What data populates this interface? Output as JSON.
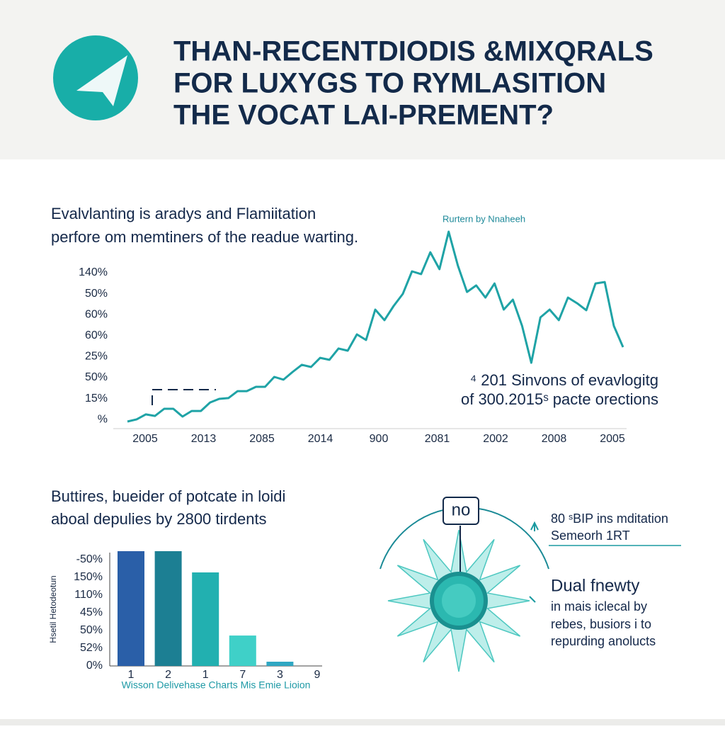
{
  "header": {
    "title": [
      "THAN-RECENTDIODIS &MIXQRALS",
      "FOR LUXYGS TO RYMLASITION",
      "THE VOCAT LAI-PREMENT?"
    ]
  },
  "line_chart": {
    "type": "line",
    "subtitle": [
      "Evalvlanting is aradys and Flamiitation",
      "perfore om memtiners of the readue warting."
    ],
    "legend": "Rurtern by Nnaheeh",
    "y_labels": [
      "140%",
      "50%",
      "60%",
      "60%",
      "25%",
      "50%",
      "15%",
      "%"
    ],
    "x_labels": [
      "2005",
      "2013",
      "2085",
      "2014",
      "900",
      "2081",
      "2002",
      "2008",
      "2005"
    ],
    "ylim": [
      0,
      100
    ],
    "color": "#1fa3a6",
    "values": [
      1.8,
      2.9,
      5.4,
      4.6,
      8.2,
      8.2,
      4.3,
      7.1,
      7.1,
      11.4,
      13.2,
      13.6,
      17.1,
      17.1,
      19.3,
      19.3,
      24.3,
      22.9,
      26.8,
      30.4,
      29.3,
      33.9,
      32.9,
      38.6,
      37.5,
      45.7,
      42.9,
      58.2,
      52.9,
      60,
      66.1,
      77.5,
      76.1,
      87.1,
      78.6,
      97.5,
      80.4,
      67.1,
      70.4,
      64.3,
      71.4,
      58.2,
      63.2,
      50,
      31.4,
      54.3,
      58.2,
      52.9,
      64.3,
      61.4,
      57.9,
      71.4,
      72.1,
      50,
      39.3
    ],
    "annotation": [
      "⁴ 201 Sinvons of evavlogitg",
      "of 300.2015ˢ pacte orections"
    ]
  },
  "bar_chart": {
    "type": "bar",
    "subtitle": [
      "Buttires, bueider of potcate in loidi",
      "aboal depulies by 2800 tirdents"
    ],
    "y_axis_label": "Hsetil  Hetodeotun",
    "y_labels": [
      "-50%",
      "150%",
      "110%",
      "45%",
      "50%",
      "52%",
      "0%"
    ],
    "categories": [
      "1",
      "2",
      "1",
      "7",
      "3",
      "9"
    ],
    "values": [
      100,
      100,
      81.5,
      26.5,
      3.7,
      0
    ],
    "colors": [
      "#2a5fa8",
      "#1c7f93",
      "#22b0b0",
      "#3fd0c8",
      "#30a7c3",
      "#30a7c3"
    ],
    "ylim": [
      0,
      100
    ],
    "caption": "Wisson Delivehase Charts Mis Emie Lioion"
  },
  "diagram": {
    "bubble": "no",
    "note": [
      "80 ˢBIP ins mditation",
      "Semeorh 1RT"
    ],
    "heading": "Dual fnewty",
    "body": [
      "in mais iclecal by",
      "rebes, busiors i to",
      "repurding anolucts"
    ]
  }
}
